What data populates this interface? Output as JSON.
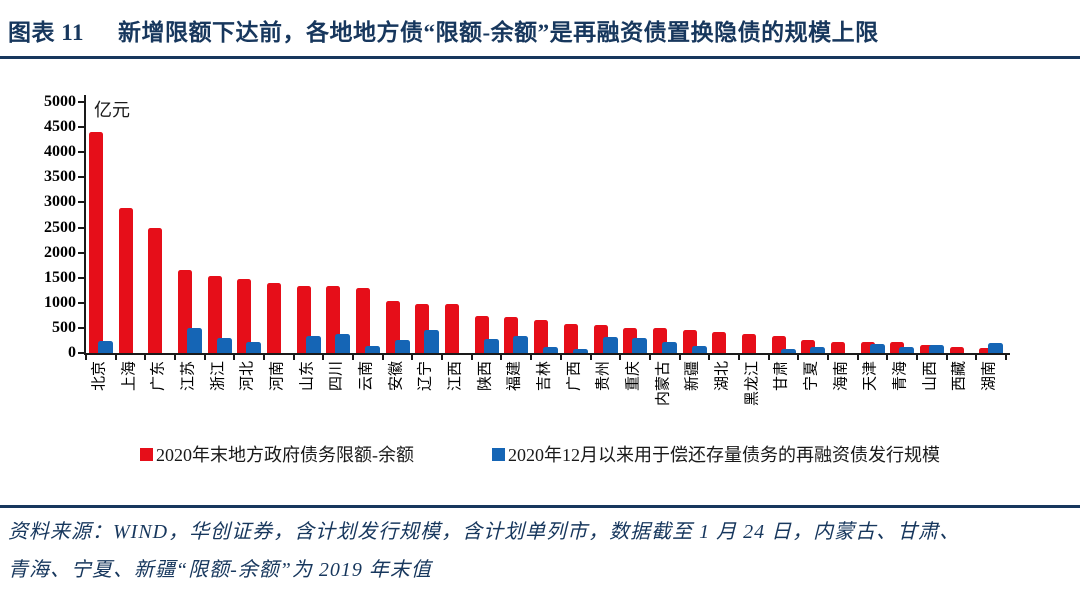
{
  "header": {
    "figure_label": "图表 11",
    "title": "新增限额下达前，各地地方债“限额-余额”是再融资债置换隐债的规模上限"
  },
  "chart_data": {
    "type": "bar",
    "unit_label": "亿元",
    "categories": [
      "北京",
      "上海",
      "广东",
      "江苏",
      "浙江",
      "河北",
      "河南",
      "山东",
      "四川",
      "云南",
      "安徽",
      "辽宁",
      "江西",
      "陕西",
      "福建",
      "吉林",
      "广西",
      "贵州",
      "重庆",
      "内蒙古",
      "新疆",
      "湖北",
      "黑龙江",
      "甘肃",
      "宁夏",
      "海南",
      "天津",
      "青海",
      "山西",
      "西藏",
      "湖南"
    ],
    "series": [
      {
        "name": "2020年末地方政府债务限额-余额",
        "color": "#e60e19",
        "values": [
          4400,
          2880,
          2500,
          1660,
          1540,
          1480,
          1400,
          1340,
          1330,
          1300,
          1030,
          980,
          970,
          730,
          710,
          660,
          580,
          555,
          500,
          490,
          450,
          420,
          370,
          340,
          250,
          220,
          220,
          210,
          160,
          120,
          100
        ]
      },
      {
        "name": "2020年12月以来用于偿还存量债务的再融资债发行规模",
        "color": "#1565b5",
        "values": [
          230,
          0,
          0,
          500,
          300,
          220,
          0,
          330,
          380,
          140,
          250,
          450,
          0,
          280,
          330,
          110,
          70,
          320,
          300,
          220,
          130,
          0,
          0,
          70,
          110,
          0,
          180,
          120,
          160,
          0,
          190
        ]
      }
    ],
    "ylim": [
      0,
      5000
    ],
    "ytick_step": 500,
    "grid": false,
    "legend_position": "bottom"
  },
  "footer": {
    "source_line1": "资料来源：WIND，华创证券，含计划发行规模，含计划单列市，数据截至 1 月 24 日，内蒙古、甘肃、",
    "source_line2": "青海、宁夏、新疆“限额-余额”为 2019 年末值"
  },
  "colors": {
    "accent_navy": "#17375d",
    "series_red": "#e60e19",
    "series_blue": "#1565b5"
  }
}
